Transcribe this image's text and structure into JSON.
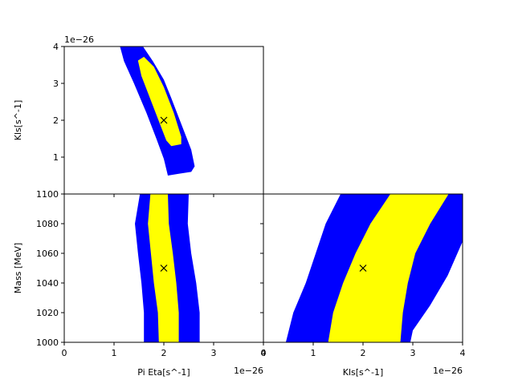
{
  "chart_data": [
    {
      "type": "contour",
      "panel": "top-left",
      "xlabel": "",
      "ylabel": "Kls[s^-1]",
      "y_offset_label": "1e−26",
      "xlim": [
        0,
        4
      ],
      "ylim": [
        0,
        4
      ],
      "xticks": [],
      "yticks": [
        "1",
        "2",
        "3",
        "4"
      ],
      "y_tick_values": [
        1,
        2,
        3,
        4
      ],
      "unit_scale": "1e-26",
      "best_fit": {
        "x": 2.0,
        "y": 2.0,
        "marker": "x"
      },
      "regions": [
        {
          "name": "outer",
          "color": "#0000ff",
          "polygon": [
            [
              2.08,
              0.5
            ],
            [
              2.3,
              0.55
            ],
            [
              2.55,
              0.6
            ],
            [
              2.62,
              0.75
            ],
            [
              2.55,
              1.2
            ],
            [
              2.35,
              1.9
            ],
            [
              2.15,
              2.6
            ],
            [
              2.0,
              3.1
            ],
            [
              1.78,
              3.6
            ],
            [
              1.58,
              4.0
            ],
            [
              1.12,
              4.0
            ],
            [
              1.2,
              3.6
            ],
            [
              1.4,
              3.0
            ],
            [
              1.65,
              2.2
            ],
            [
              1.85,
              1.5
            ],
            [
              2.0,
              0.95
            ]
          ]
        },
        {
          "name": "inner",
          "color": "#ffff00",
          "polygon": [
            [
              2.15,
              1.3
            ],
            [
              2.35,
              1.35
            ],
            [
              2.35,
              1.55
            ],
            [
              2.2,
              2.2
            ],
            [
              2.0,
              2.9
            ],
            [
              1.8,
              3.45
            ],
            [
              1.6,
              3.72
            ],
            [
              1.48,
              3.62
            ],
            [
              1.55,
              3.2
            ],
            [
              1.75,
              2.5
            ],
            [
              1.95,
              1.8
            ],
            [
              2.05,
              1.45
            ]
          ]
        }
      ]
    },
    {
      "type": "contour",
      "panel": "bottom-left",
      "xlabel": "Pi Eta[s^-1]",
      "ylabel": "Mass [MeV]",
      "x_offset_label": "1e−26",
      "xlim": [
        0,
        4
      ],
      "ylim": [
        1000,
        1100
      ],
      "xticks": [
        "0",
        "1",
        "2",
        "3",
        "4"
      ],
      "x_tick_values": [
        0,
        1,
        2,
        3,
        4
      ],
      "yticks": [
        "1000",
        "1020",
        "1040",
        "1060",
        "1080",
        "1100"
      ],
      "y_tick_values": [
        1000,
        1020,
        1040,
        1060,
        1080,
        1100
      ],
      "unit_scale": "1e-26",
      "best_fit": {
        "x": 2.0,
        "y": 1050,
        "marker": "x"
      },
      "regions": [
        {
          "name": "outer",
          "color": "#0000ff",
          "polygon": [
            [
              1.52,
              1100
            ],
            [
              1.42,
              1080
            ],
            [
              1.48,
              1060
            ],
            [
              1.55,
              1040
            ],
            [
              1.6,
              1020
            ],
            [
              1.6,
              1000
            ],
            [
              2.72,
              1000
            ],
            [
              2.72,
              1020
            ],
            [
              2.65,
              1040
            ],
            [
              2.55,
              1060
            ],
            [
              2.48,
              1080
            ],
            [
              2.5,
              1100
            ]
          ]
        },
        {
          "name": "inner",
          "color": "#ffff00",
          "polygon": [
            [
              1.73,
              1100
            ],
            [
              1.68,
              1080
            ],
            [
              1.74,
              1060
            ],
            [
              1.8,
              1040
            ],
            [
              1.88,
              1020
            ],
            [
              1.9,
              1000
            ],
            [
              2.3,
              1000
            ],
            [
              2.3,
              1020
            ],
            [
              2.25,
              1040
            ],
            [
              2.18,
              1060
            ],
            [
              2.1,
              1080
            ],
            [
              2.08,
              1100
            ]
          ]
        }
      ]
    },
    {
      "type": "contour",
      "panel": "bottom-right",
      "xlabel": "Kls[s^-1]",
      "ylabel": "",
      "x_offset_label": "1e−26",
      "xlim": [
        0,
        4
      ],
      "ylim": [
        1000,
        1100
      ],
      "xticks": [
        "0",
        "1",
        "2",
        "3",
        "4"
      ],
      "x_tick_values": [
        0,
        1,
        2,
        3,
        4
      ],
      "yticks": [],
      "unit_scale": "1e-26",
      "best_fit": {
        "x": 2.0,
        "y": 1050,
        "marker": "x"
      },
      "regions": [
        {
          "name": "outer",
          "color": "#0000ff",
          "polygon": [
            [
              0.45,
              1000
            ],
            [
              0.6,
              1020
            ],
            [
              0.85,
              1040
            ],
            [
              1.05,
              1060
            ],
            [
              1.25,
              1080
            ],
            [
              1.55,
              1100
            ],
            [
              4.0,
              1100
            ],
            [
              4.0,
              1068
            ],
            [
              3.7,
              1045
            ],
            [
              3.35,
              1025
            ],
            [
              3.0,
              1008
            ],
            [
              2.95,
              1000
            ]
          ]
        },
        {
          "name": "inner",
          "color": "#ffff00",
          "polygon": [
            [
              1.3,
              1000
            ],
            [
              1.4,
              1020
            ],
            [
              1.6,
              1040
            ],
            [
              1.85,
              1060
            ],
            [
              2.15,
              1080
            ],
            [
              2.55,
              1100
            ],
            [
              3.72,
              1100
            ],
            [
              3.35,
              1080
            ],
            [
              3.05,
              1060
            ],
            [
              2.9,
              1040
            ],
            [
              2.8,
              1020
            ],
            [
              2.75,
              1000
            ]
          ]
        }
      ]
    }
  ]
}
